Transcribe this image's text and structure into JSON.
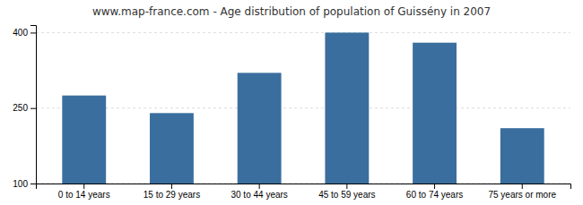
{
  "chart_data": {
    "type": "bar",
    "title": "www.map-france.com - Age distribution of population of Guissény in 2007",
    "categories": [
      "0 to 14 years",
      "15 to 29 years",
      "30 to 44 years",
      "45 to 59 years",
      "60 to 74 years",
      "75 years or more"
    ],
    "values": [
      275,
      240,
      320,
      400,
      380,
      210
    ],
    "color": "#3a6e9e",
    "ylim": [
      100,
      415
    ],
    "yticks": [
      100,
      250,
      400
    ],
    "grid": true
  }
}
